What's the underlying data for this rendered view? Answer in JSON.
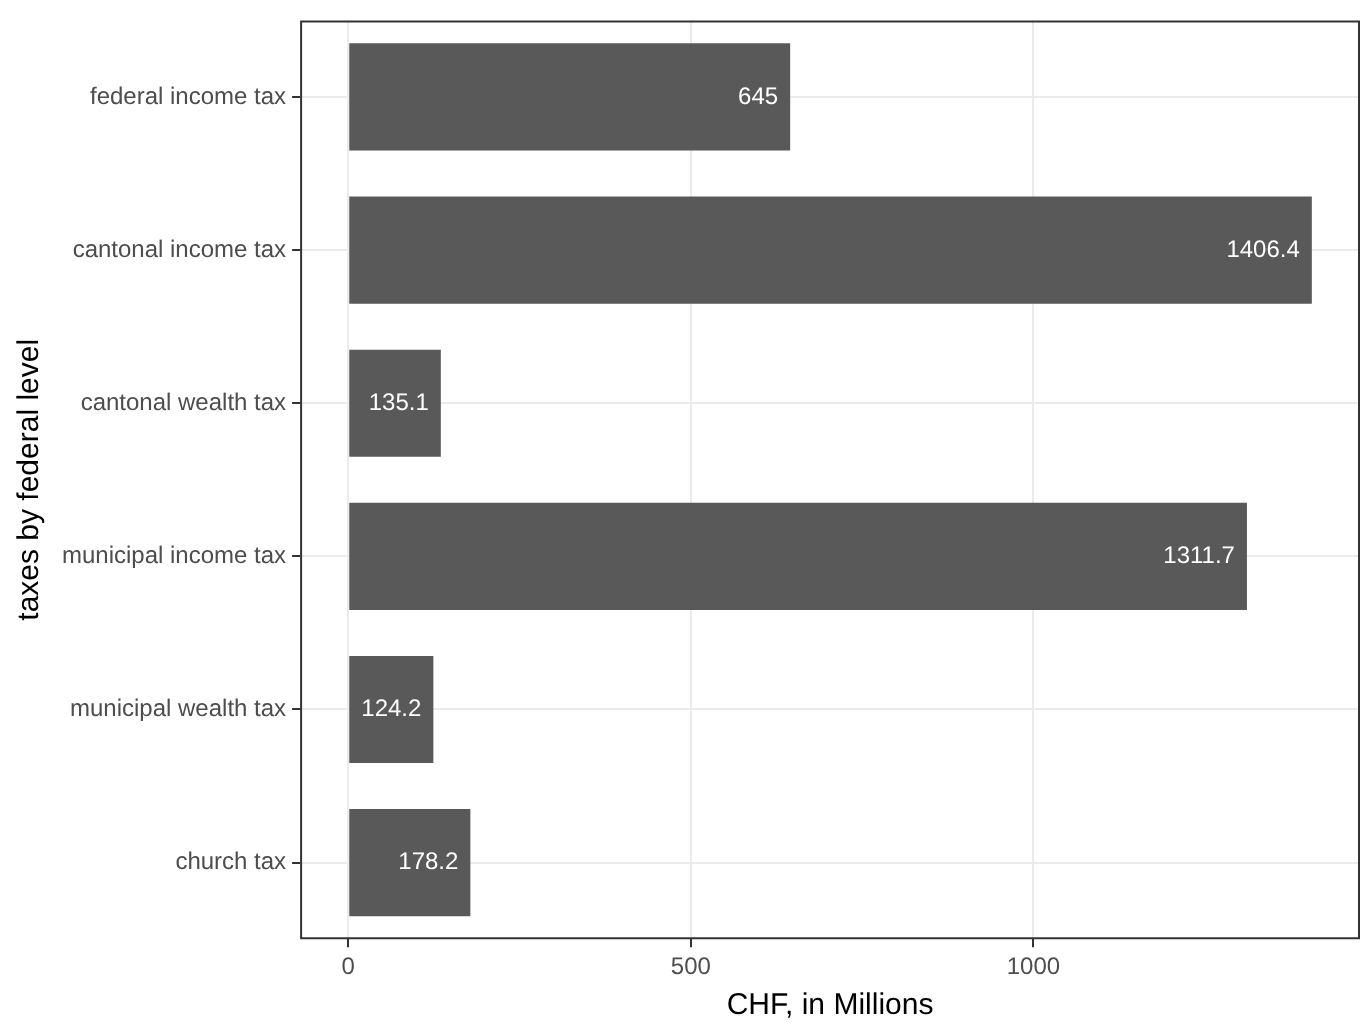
{
  "chart_data": {
    "type": "bar",
    "orientation": "horizontal",
    "xlabel": "CHF, in Millions",
    "ylabel": "taxes by federal level",
    "categories": [
      "federal income tax",
      "cantonal income tax",
      "cantonal wealth tax",
      "municipal income tax",
      "municipal wealth tax",
      "church tax"
    ],
    "values": [
      645,
      1406.4,
      135.1,
      1311.7,
      124.2,
      178.2
    ],
    "color": "#595959",
    "xlim": [
      -70.32,
      1476.72
    ],
    "xticks": [
      0,
      500,
      1000
    ],
    "grid": true,
    "legend": false,
    "data_labels": true
  }
}
